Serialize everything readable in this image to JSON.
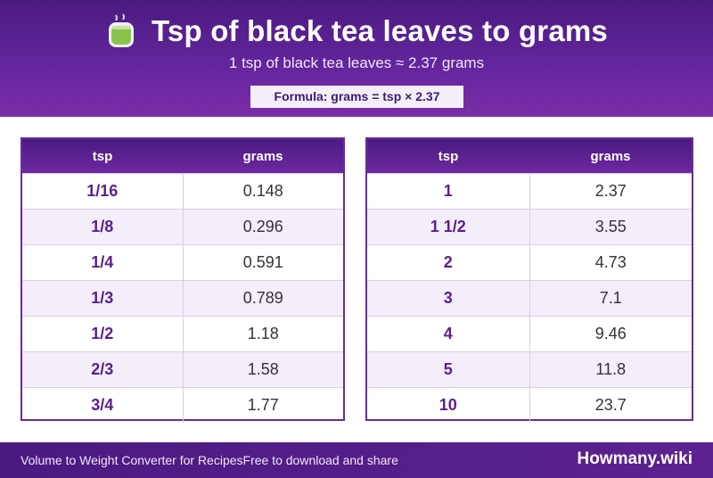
{
  "header": {
    "icon": "tea-cup-icon",
    "title": "Tsp of black tea leaves to grams",
    "subtitle": "1 tsp of black tea leaves ≈ 2.37 grams",
    "formula": "Formula: grams = tsp × 2.37"
  },
  "tables": [
    {
      "columns": [
        "tsp",
        "grams"
      ],
      "rows": [
        {
          "tsp": "1/16",
          "grams": "0.148"
        },
        {
          "tsp": "1/8",
          "grams": "0.296"
        },
        {
          "tsp": "1/4",
          "grams": "0.591"
        },
        {
          "tsp": "1/3",
          "grams": "0.789"
        },
        {
          "tsp": "1/2",
          "grams": "1.18"
        },
        {
          "tsp": "2/3",
          "grams": "1.58"
        },
        {
          "tsp": "3/4",
          "grams": "1.77"
        }
      ]
    },
    {
      "columns": [
        "tsp",
        "grams"
      ],
      "rows": [
        {
          "tsp": "1",
          "grams": "2.37"
        },
        {
          "tsp": "1 1/2",
          "grams": "3.55"
        },
        {
          "tsp": "2",
          "grams": "4.73"
        },
        {
          "tsp": "3",
          "grams": "7.1"
        },
        {
          "tsp": "4",
          "grams": "9.46"
        },
        {
          "tsp": "5",
          "grams": "11.8"
        },
        {
          "tsp": "10",
          "grams": "23.7"
        }
      ]
    }
  ],
  "footer": {
    "left": "Volume to Weight Converter for RecipesFree to download and share",
    "brand": "Howmany.wiki"
  },
  "colors": {
    "brand_purple": "#5a1e8e",
    "header_dark": "#4a1a80",
    "row_alt": "#f3eefa"
  }
}
